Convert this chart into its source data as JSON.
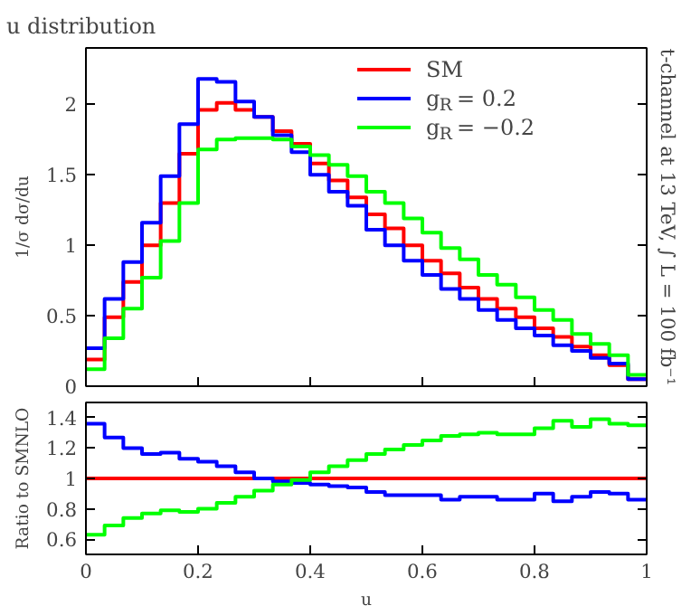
{
  "chart_data": [
    {
      "type": "histogram",
      "title": "u distribution",
      "ylabel": "1/σ dσ/du",
      "annotations": [
        "t-channel at 13 TeV, ∫ L = 100 fb⁻¹"
      ],
      "bins": [
        0,
        0.0333,
        0.0667,
        0.1,
        0.1333,
        0.1667,
        0.2,
        0.2333,
        0.2667,
        0.3,
        0.3333,
        0.3667,
        0.4,
        0.4333,
        0.4667,
        0.5,
        0.5333,
        0.5667,
        0.6,
        0.6333,
        0.6667,
        0.7,
        0.7333,
        0.7667,
        0.8,
        0.8333,
        0.8667,
        0.9,
        0.9333,
        0.9667,
        1
      ],
      "xlim": [
        0,
        1
      ],
      "xticks": [
        0,
        0.2,
        0.4,
        0.6,
        0.8,
        1
      ],
      "ylim": [
        0,
        2.4
      ],
      "yticks": [
        0,
        0.5,
        1,
        1.5,
        2
      ],
      "tick_labels": "y",
      "legend": "top right",
      "line_style": "solid",
      "series": [
        {
          "name": "SM",
          "color": "#ff0000",
          "values": [
            0.19,
            0.49,
            0.74,
            1.0,
            1.3,
            1.65,
            1.96,
            2.01,
            1.96,
            1.91,
            1.81,
            1.72,
            1.58,
            1.46,
            1.34,
            1.22,
            1.12,
            1.0,
            0.89,
            0.8,
            0.7,
            0.62,
            0.55,
            0.49,
            0.41,
            0.35,
            0.28,
            0.22,
            0.15,
            0.05
          ]
        },
        {
          "name": "g$_{R}$ = 0.2",
          "color": "#0000ff",
          "values": [
            0.27,
            0.62,
            0.88,
            1.16,
            1.49,
            1.86,
            2.18,
            2.16,
            2.02,
            1.91,
            1.78,
            1.66,
            1.5,
            1.38,
            1.28,
            1.11,
            1.0,
            0.89,
            0.79,
            0.69,
            0.62,
            0.54,
            0.47,
            0.41,
            0.36,
            0.29,
            0.25,
            0.2,
            0.16,
            0.05
          ]
        },
        {
          "name": "g$_{R}$ = −0.2",
          "color": "#00ff00",
          "values": [
            0.12,
            0.34,
            0.55,
            0.77,
            1.03,
            1.3,
            1.68,
            1.75,
            1.76,
            1.76,
            1.75,
            1.7,
            1.64,
            1.57,
            1.49,
            1.38,
            1.3,
            1.19,
            1.09,
            0.98,
            0.9,
            0.79,
            0.72,
            0.63,
            0.54,
            0.47,
            0.37,
            0.3,
            0.22,
            0.08
          ]
        }
      ]
    },
    {
      "type": "histogram",
      "xlabel": "u",
      "ylabel": "Ratio to SMNLO",
      "bins": [
        0,
        0.0333,
        0.0667,
        0.1,
        0.1333,
        0.1667,
        0.2,
        0.2333,
        0.2667,
        0.3,
        0.3333,
        0.3667,
        0.4,
        0.4333,
        0.4667,
        0.5,
        0.5333,
        0.5667,
        0.6,
        0.6333,
        0.6667,
        0.7,
        0.7333,
        0.7667,
        0.8,
        0.8333,
        0.8667,
        0.9,
        0.9333,
        0.9667,
        1
      ],
      "xlim": [
        0,
        1
      ],
      "xticks": [
        0,
        0.2,
        0.4,
        0.6,
        0.8,
        1
      ],
      "ylim": [
        0.5,
        1.5
      ],
      "yticks": [
        0.6,
        0.8,
        1,
        1.2,
        1.4
      ],
      "line_style": "solid",
      "series": [
        {
          "color": "#ff0000",
          "values": [
            1,
            1,
            1,
            1,
            1,
            1,
            1,
            1,
            1,
            1,
            1,
            1,
            1,
            1,
            1,
            1,
            1,
            1,
            1,
            1,
            1,
            1,
            1,
            1,
            1,
            1,
            1,
            1,
            1,
            1
          ]
        },
        {
          "color": "#0000ff",
          "values": [
            1.36,
            1.27,
            1.2,
            1.16,
            1.17,
            1.13,
            1.11,
            1.08,
            1.04,
            1.0,
            0.98,
            0.97,
            0.96,
            0.95,
            0.94,
            0.91,
            0.89,
            0.89,
            0.89,
            0.86,
            0.88,
            0.88,
            0.86,
            0.86,
            0.9,
            0.85,
            0.88,
            0.91,
            0.9,
            0.86
          ]
        },
        {
          "color": "#00ff00",
          "values": [
            0.63,
            0.69,
            0.74,
            0.77,
            0.79,
            0.78,
            0.8,
            0.84,
            0.88,
            0.92,
            0.96,
            0.99,
            1.04,
            1.08,
            1.12,
            1.16,
            1.19,
            1.22,
            1.25,
            1.28,
            1.29,
            1.3,
            1.29,
            1.29,
            1.33,
            1.38,
            1.34,
            1.39,
            1.36,
            1.35
          ]
        }
      ]
    }
  ]
}
